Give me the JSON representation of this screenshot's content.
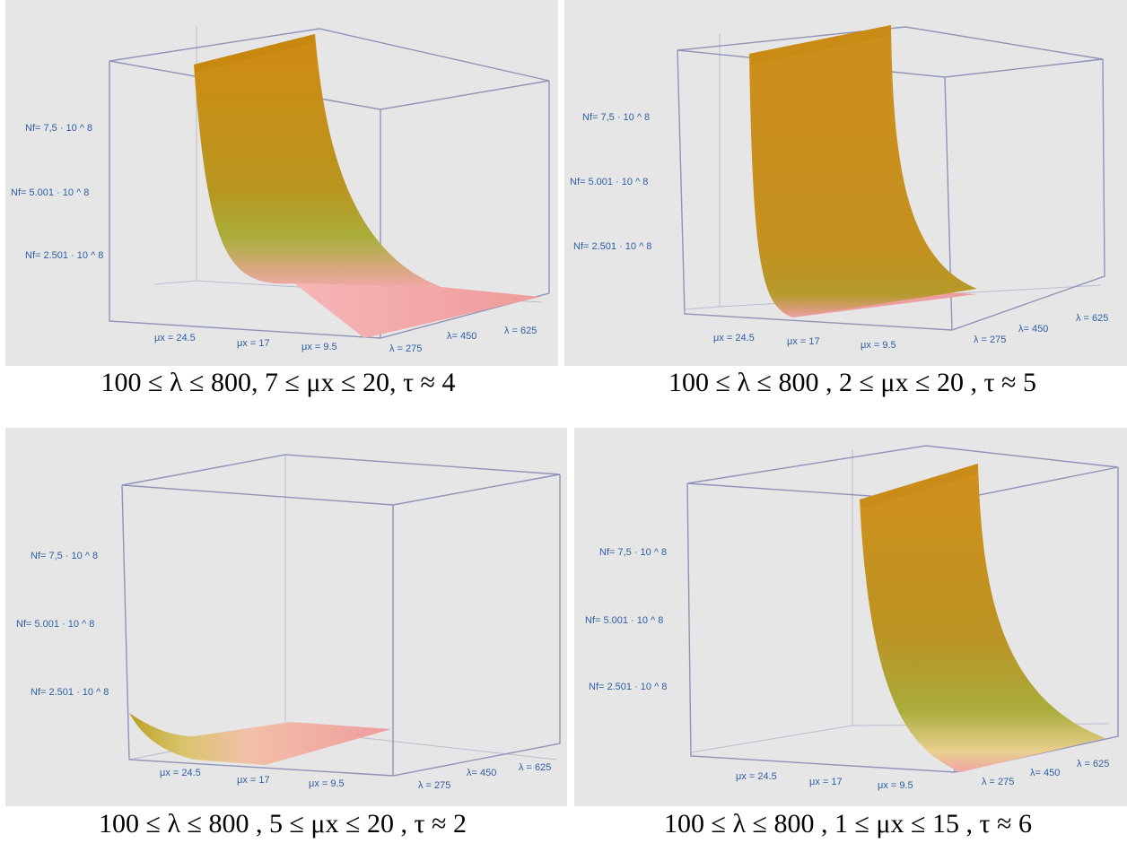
{
  "chart_data": [
    {
      "type": "surface3d",
      "x_tick_labels": [
        "μx = 24.5",
        "μx = 17",
        "μx = 9.5"
      ],
      "y_tick_labels": [
        "λ = 275",
        "λ= 450",
        "λ = 625"
      ],
      "z_tick_labels": [
        "Nf= 7,5 · 10 ^ 8",
        "Nf= 5.001 · 10 ^ 8",
        "Nf= 2.501 · 10 ^ 8"
      ],
      "caption": "100 ≤ λ ≤ 800,  7 ≤ μx ≤ 20,  τ ≈ 4"
    },
    {
      "type": "surface3d",
      "x_tick_labels": [
        "μx = 24.5",
        "μx = 17",
        "μx = 9.5"
      ],
      "y_tick_labels": [
        "λ = 275",
        "λ= 450",
        "λ = 625"
      ],
      "z_tick_labels": [
        "Nf= 7,5 · 10 ^ 8",
        "Nf= 5.001 · 10 ^ 8",
        "Nf= 2.501 · 10 ^ 8"
      ],
      "caption": "100 ≤ λ ≤ 800 , 2 ≤ μx ≤ 20 , τ ≈ 5"
    },
    {
      "type": "surface3d",
      "x_tick_labels": [
        "μx = 24.5",
        "μx = 17",
        "μx = 9.5"
      ],
      "y_tick_labels": [
        "λ = 275",
        "λ= 450",
        "λ = 625"
      ],
      "z_tick_labels": [
        "Nf= 7,5 · 10 ^ 8",
        "Nf= 5.001 · 10 ^ 8",
        "Nf= 2.501 · 10 ^ 8"
      ],
      "caption": "100 ≤ λ ≤ 800 , 5 ≤ μx ≤ 20 , τ ≈ 2"
    },
    {
      "type": "surface3d",
      "x_tick_labels": [
        "μx = 24.5",
        "μx = 17",
        "μx = 9.5"
      ],
      "y_tick_labels": [
        "λ = 275",
        "λ= 450",
        "λ = 625"
      ],
      "z_tick_labels": [
        "Nf= 7,5 · 10 ^ 8",
        "Nf= 5.001 · 10 ^ 8",
        "Nf= 2.501 · 10 ^ 8"
      ],
      "caption": "100 ≤ λ ≤ 800 , 1 ≤ μx ≤ 15 , τ ≈ 6"
    }
  ]
}
